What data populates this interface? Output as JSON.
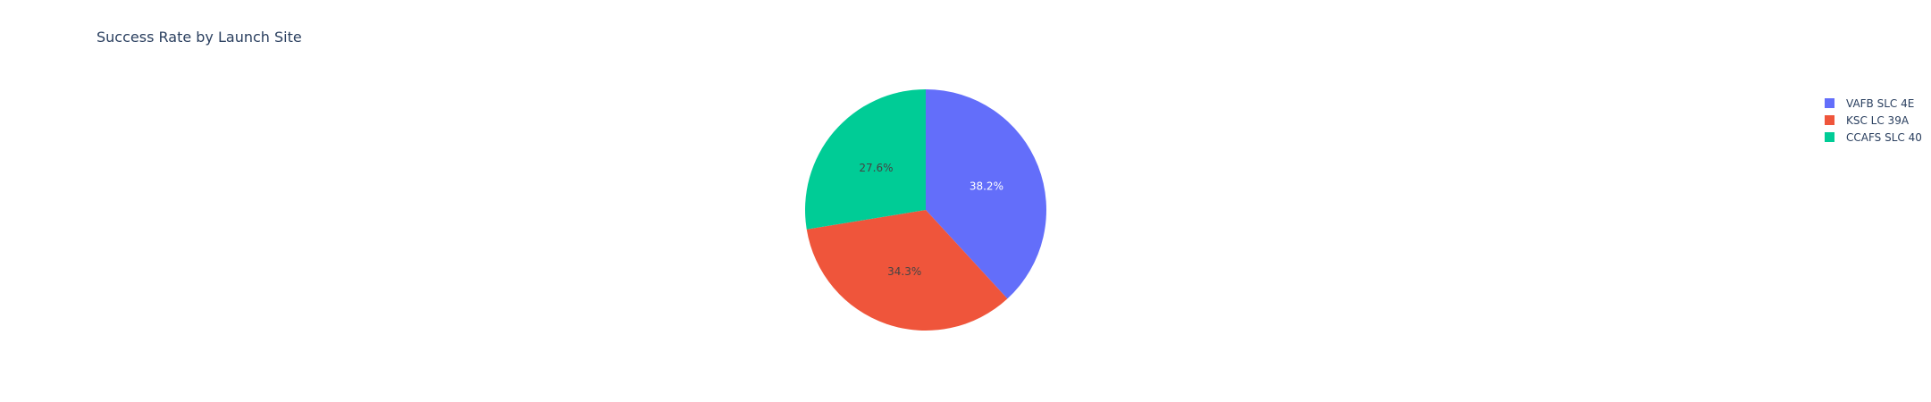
{
  "chart_data": {
    "type": "pie",
    "title": "Success Rate by Launch Site",
    "sort_order": "descending-clockwise-from-top",
    "slices": [
      {
        "label": "VAFB SLC 4E",
        "value": 38.2,
        "display": "38.2%",
        "color": "#636efa",
        "text_color": "#ffffff"
      },
      {
        "label": "KSC LC 39A",
        "value": 34.3,
        "display": "34.3%",
        "color": "#ef553b",
        "text_color": "#444444"
      },
      {
        "label": "CCAFS SLC 40",
        "value": 27.6,
        "display": "27.6%",
        "color": "#00cc96",
        "text_color": "#444444"
      }
    ],
    "legend_order": [
      "VAFB SLC 4E",
      "KSC LC 39A",
      "CCAFS SLC 40"
    ],
    "legend_position": "top-right"
  }
}
